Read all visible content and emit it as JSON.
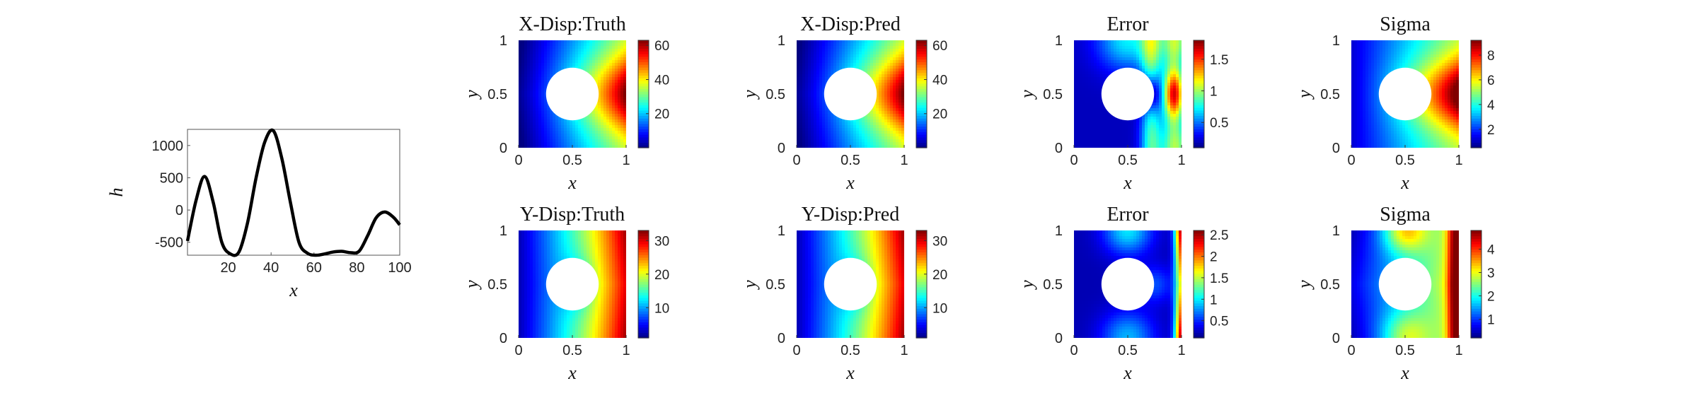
{
  "chart_data": [
    {
      "type": "line",
      "title": "",
      "xlabel": "x",
      "ylabel": "h",
      "xlim": [
        1,
        100
      ],
      "ylim": [
        -700,
        1250
      ],
      "xticks": [
        "20",
        "40",
        "60",
        "80",
        "100"
      ],
      "yticks": [
        "-500",
        "0",
        "500",
        "1000"
      ],
      "x": [
        1,
        5,
        9,
        13,
        17,
        21,
        25,
        29,
        33,
        37,
        41,
        45,
        49,
        53,
        57,
        61,
        65,
        69,
        73,
        77,
        81,
        85,
        89,
        93,
        97,
        100
      ],
      "y": [
        -480,
        150,
        520,
        120,
        -500,
        -680,
        -650,
        -200,
        500,
        1050,
        1230,
        800,
        120,
        -500,
        -670,
        -700,
        -680,
        -650,
        -640,
        -660,
        -640,
        -400,
        -120,
        -30,
        -110,
        -230
      ],
      "line_color": "#000000"
    },
    {
      "type": "heatmap",
      "title": "X-Disp:Truth",
      "xlabel": "x",
      "ylabel": "y",
      "xticks": [
        "0",
        "0.5",
        "1"
      ],
      "yticks": [
        "0",
        "0.5",
        "1"
      ],
      "colorbar_ticks": [
        "20",
        "40",
        "60"
      ],
      "colorbar_range": [
        0,
        63
      ],
      "field": "xdisp",
      "hole": "circle",
      "colormap": "jet"
    },
    {
      "type": "heatmap",
      "title": "X-Disp:Pred",
      "xlabel": "x",
      "ylabel": "y",
      "xticks": [
        "0",
        "0.5",
        "1"
      ],
      "yticks": [
        "0",
        "0.5",
        "1"
      ],
      "colorbar_ticks": [
        "20",
        "40",
        "60"
      ],
      "colorbar_range": [
        0,
        63
      ],
      "field": "xdisp",
      "hole": "circle",
      "colormap": "jet"
    },
    {
      "type": "heatmap",
      "title": "Error",
      "xlabel": "x",
      "ylabel": "y",
      "xticks": [
        "0",
        "0.5",
        "1"
      ],
      "yticks": [
        "0",
        "0.5",
        "1"
      ],
      "colorbar_ticks": [
        "0.5",
        "1",
        "1.5"
      ],
      "colorbar_range": [
        0.1,
        1.8
      ],
      "field": "xerr",
      "hole": "circle",
      "colormap": "jet"
    },
    {
      "type": "heatmap",
      "title": "Sigma",
      "xlabel": "x",
      "ylabel": "y",
      "xticks": [
        "0",
        "0.5",
        "1"
      ],
      "yticks": [
        "0",
        "0.5",
        "1"
      ],
      "colorbar_ticks": [
        "2",
        "4",
        "6",
        "8"
      ],
      "colorbar_range": [
        0.5,
        9.2
      ],
      "field": "xsig",
      "hole": "circle",
      "colormap": "jet"
    },
    {
      "type": "heatmap",
      "title": "Y-Disp:Truth",
      "xlabel": "x",
      "ylabel": "y",
      "xticks": [
        "0",
        "0.5",
        "1"
      ],
      "yticks": [
        "0",
        "0.5",
        "1"
      ],
      "colorbar_ticks": [
        "10",
        "20",
        "30"
      ],
      "colorbar_range": [
        1,
        33
      ],
      "field": "ydisp",
      "hole": "circle",
      "colormap": "jet"
    },
    {
      "type": "heatmap",
      "title": "Y-Disp:Pred",
      "xlabel": "x",
      "ylabel": "y",
      "xticks": [
        "0",
        "0.5",
        "1"
      ],
      "yticks": [
        "0",
        "0.5",
        "1"
      ],
      "colorbar_ticks": [
        "10",
        "20",
        "30"
      ],
      "colorbar_range": [
        1,
        33
      ],
      "field": "ydisp",
      "hole": "circle",
      "colormap": "jet"
    },
    {
      "type": "heatmap",
      "title": "Error",
      "xlabel": "x",
      "ylabel": "y",
      "xticks": [
        "0",
        "0.5",
        "1"
      ],
      "yticks": [
        "0",
        "0.5",
        "1"
      ],
      "colorbar_ticks": [
        "0.5",
        "1",
        "1.5",
        "2",
        "2.5"
      ],
      "colorbar_range": [
        0.1,
        2.6
      ],
      "field": "yerr",
      "hole": "circle",
      "colormap": "jet"
    },
    {
      "type": "heatmap",
      "title": "Sigma",
      "xlabel": "x",
      "ylabel": "y",
      "xticks": [
        "0",
        "0.5",
        "1"
      ],
      "yticks": [
        "0",
        "0.5",
        "1"
      ],
      "colorbar_ticks": [
        "1",
        "2",
        "3",
        "4"
      ],
      "colorbar_range": [
        0.2,
        4.8
      ],
      "field": "ysig",
      "hole": "circle",
      "colormap": "jet"
    }
  ]
}
